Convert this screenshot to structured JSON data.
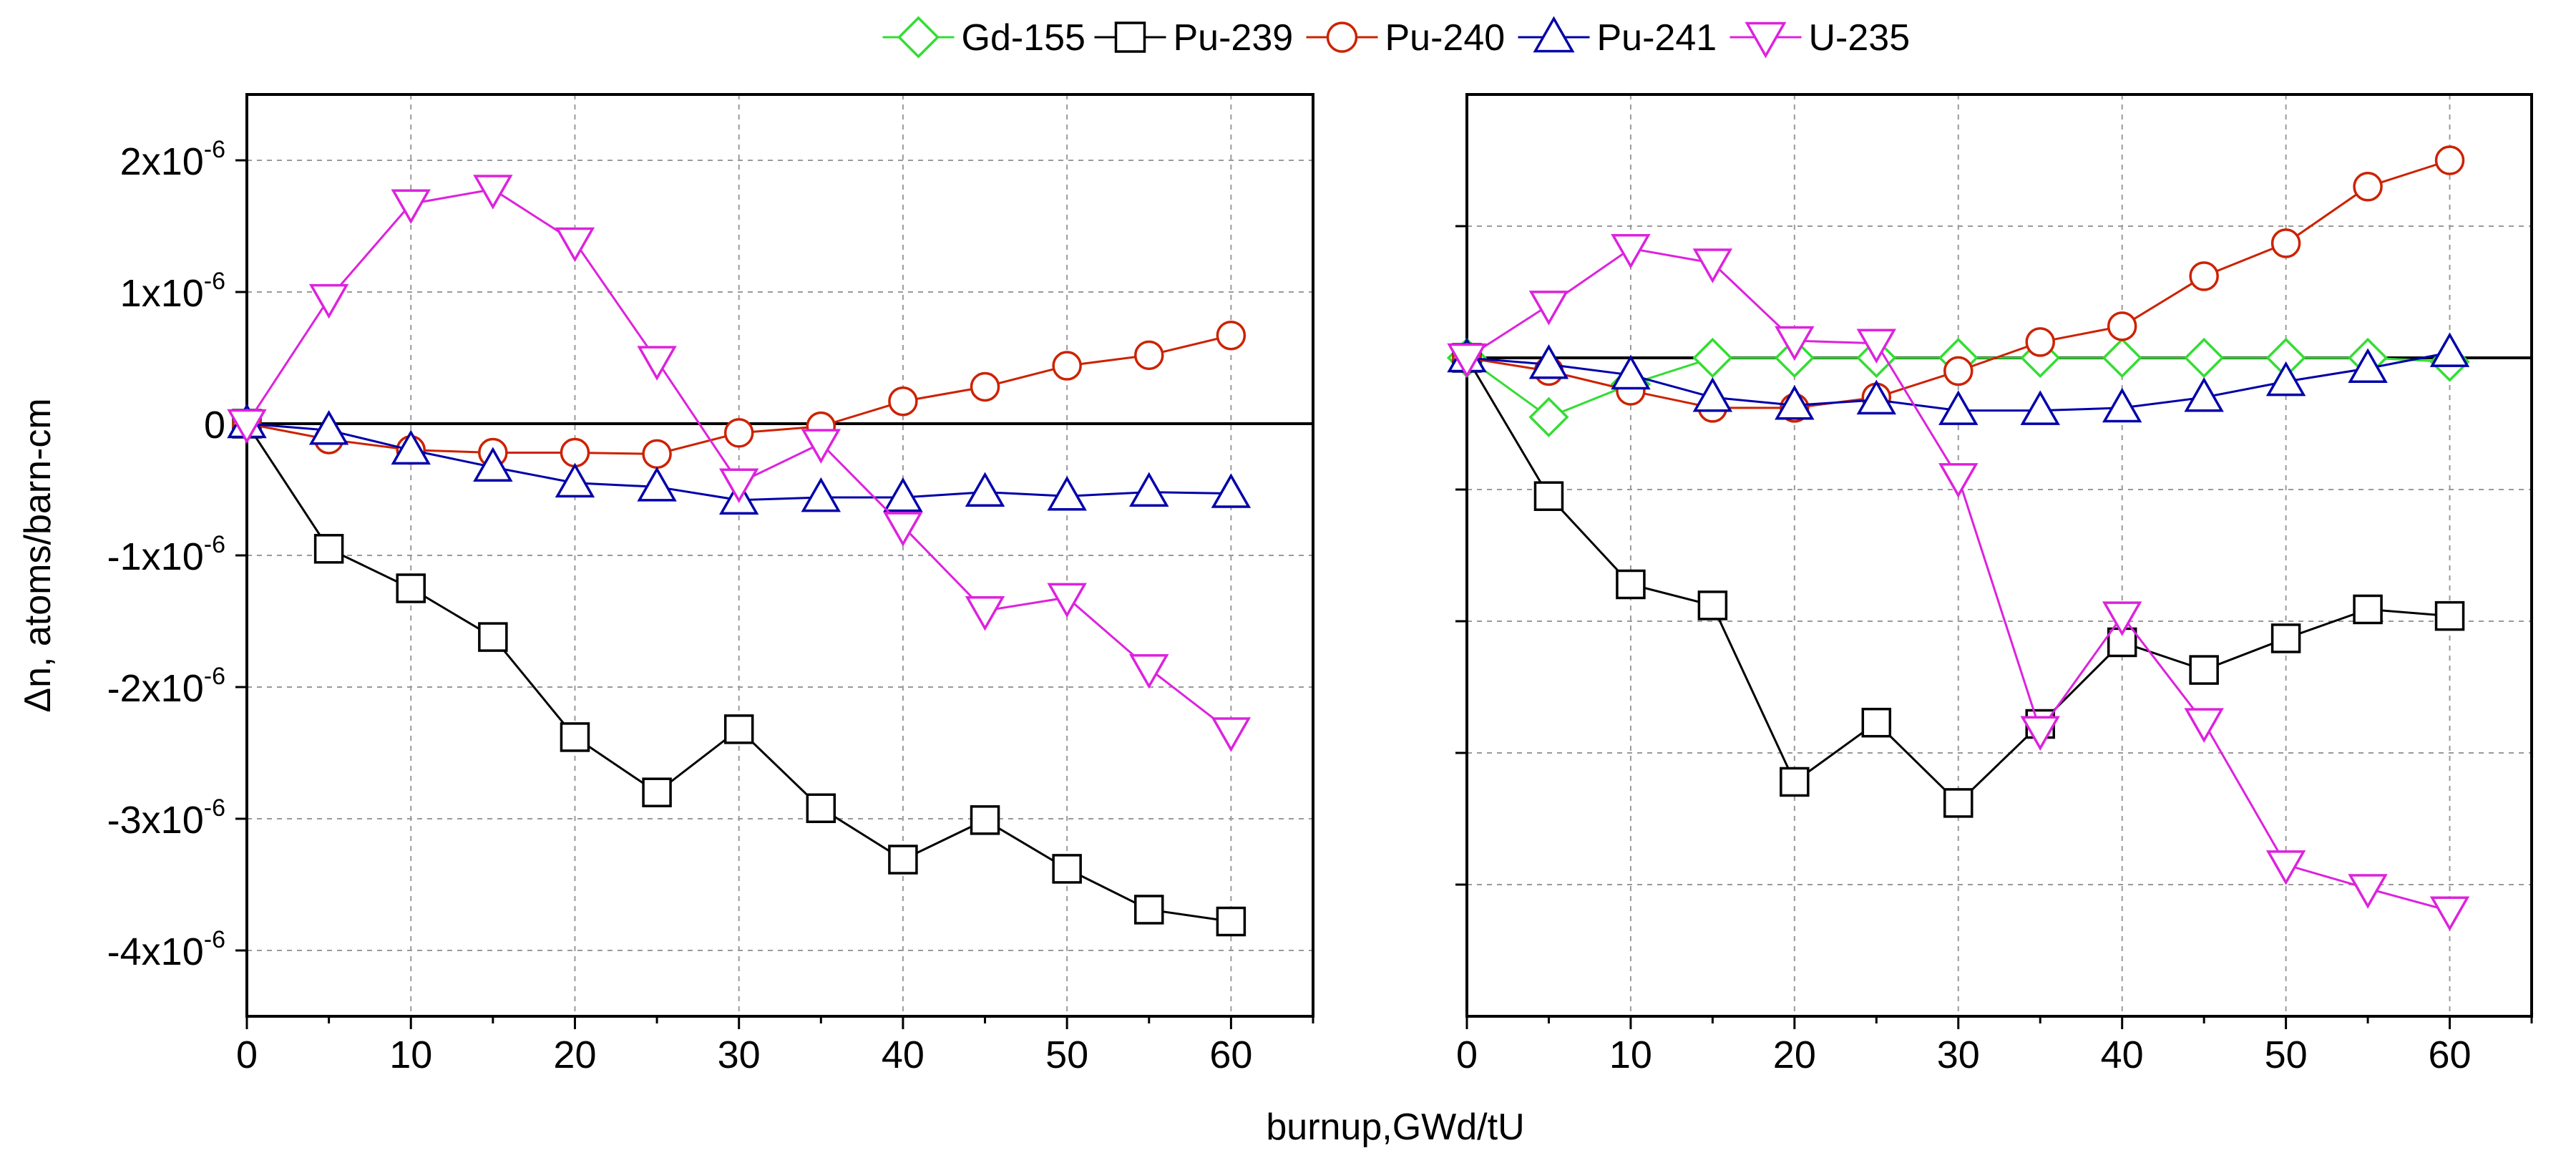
{
  "xlabel": "burnup,GWd/tU",
  "legend": [
    {
      "name": "Gd-155",
      "color": "#33dd33",
      "marker": "diamond"
    },
    {
      "name": "Pu-239",
      "color": "#000000",
      "marker": "square"
    },
    {
      "name": "Pu-240",
      "color": "#cc2200",
      "marker": "circle"
    },
    {
      "name": "Pu-241",
      "color": "#0000aa",
      "marker": "triangle-up"
    },
    {
      "name": "U-235",
      "color": "#dd22dd",
      "marker": "triangle-down"
    }
  ],
  "chart_data": [
    {
      "type": "line",
      "ylabel": "Δn, atoms/barn-cm",
      "xlim": [
        0,
        65
      ],
      "ylim": [
        -4.5,
        2.5
      ],
      "y_unit_exponent": -6,
      "xticks": [
        0,
        10,
        20,
        30,
        40,
        50,
        60
      ],
      "yticks": [
        -4,
        -3,
        -2,
        -1,
        0,
        1,
        2
      ],
      "ytick_labels": [
        "-4x10",
        "-3x10",
        "-2x10",
        "-1x10",
        "0",
        "1x10",
        "2x10"
      ],
      "ytick_exponents": [
        "-6",
        "-6",
        "-6",
        "-6",
        "",
        "-6",
        "-6"
      ],
      "grid": true,
      "reference_line": 0,
      "x": [
        0,
        5,
        10,
        15,
        20,
        25,
        30,
        35,
        40,
        45,
        50,
        55,
        60
      ],
      "series": [
        {
          "name": "Pu-239",
          "values": [
            0,
            -0.95,
            -1.25,
            -1.62,
            -2.38,
            -2.8,
            -2.32,
            -2.92,
            -3.31,
            -3.01,
            -3.38,
            -3.69,
            -3.78
          ]
        },
        {
          "name": "Pu-240",
          "values": [
            0,
            -0.12,
            -0.2,
            -0.22,
            -0.22,
            -0.23,
            -0.07,
            -0.02,
            0.17,
            0.28,
            0.44,
            0.52,
            0.67
          ]
        },
        {
          "name": "Pu-241",
          "values": [
            0,
            -0.05,
            -0.2,
            -0.33,
            -0.45,
            -0.48,
            -0.58,
            -0.56,
            -0.56,
            -0.52,
            -0.55,
            -0.52,
            -0.53
          ]
        },
        {
          "name": "U-235",
          "values": [
            0,
            0.95,
            1.67,
            1.78,
            1.38,
            0.48,
            -0.45,
            -0.15,
            -0.78,
            -1.42,
            -1.32,
            -1.86,
            -2.34
          ]
        }
      ]
    },
    {
      "type": "line",
      "ylabel": "",
      "xlim": [
        0,
        65
      ],
      "ylim": [
        -4.5,
        2.5
      ],
      "y_unit_exponent": -6,
      "xticks": [
        0,
        10,
        20,
        30,
        40,
        50,
        60
      ],
      "yticks": [
        -3.5,
        -2.5,
        -1.5,
        -0.5,
        0.5,
        1.5
      ],
      "grid": true,
      "reference_line": 0.5,
      "x": [
        0,
        5,
        10,
        15,
        20,
        25,
        30,
        35,
        40,
        45,
        50,
        55,
        60
      ],
      "series": [
        {
          "name": "Gd-155",
          "values": [
            0.5,
            0.05,
            0.3,
            0.5,
            0.5,
            0.5,
            0.5,
            0.5,
            0.5,
            0.5,
            0.5,
            0.5,
            0.47
          ]
        },
        {
          "name": "Pu-239",
          "values": [
            0.5,
            -0.55,
            -1.22,
            -1.38,
            -2.72,
            -2.27,
            -2.88,
            -2.28,
            -1.66,
            -1.87,
            -1.63,
            -1.41,
            -1.46
          ]
        },
        {
          "name": "Pu-240",
          "values": [
            0.5,
            0.4,
            0.25,
            0.12,
            0.12,
            0.2,
            0.4,
            0.62,
            0.74,
            1.12,
            1.37,
            1.8,
            2.0
          ]
        },
        {
          "name": "Pu-241",
          "values": [
            0.5,
            0.45,
            0.37,
            0.2,
            0.14,
            0.18,
            0.1,
            0.1,
            0.12,
            0.2,
            0.32,
            0.42,
            0.54
          ]
        },
        {
          "name": "U-235",
          "values": [
            0.5,
            0.9,
            1.33,
            1.22,
            0.63,
            0.61,
            -0.41,
            -2.33,
            -1.46,
            -2.27,
            -3.35,
            -3.53,
            -3.7
          ]
        }
      ]
    }
  ]
}
